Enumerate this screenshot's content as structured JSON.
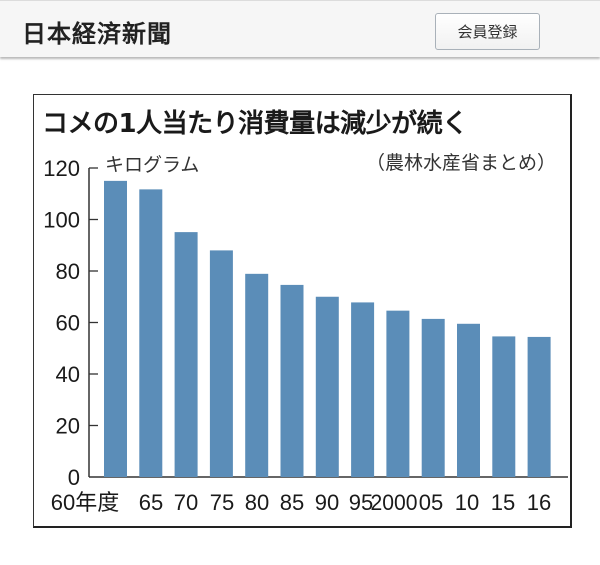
{
  "header": {
    "logo": "日本経済新聞",
    "signup_button": "会員登録"
  },
  "chart_data": {
    "type": "bar",
    "title": "コメの1人当たり消費量は減少が続く",
    "source": "（農林水産省まとめ）",
    "unit": "キログラム",
    "xlabel": "",
    "ylabel": "キログラム",
    "ylim": [
      0,
      120
    ],
    "yticks": [
      "0",
      "20",
      "40",
      "60",
      "80",
      "100",
      "120"
    ],
    "categories": [
      "60年度",
      "65",
      "70",
      "75",
      "80",
      "85",
      "90",
      "95",
      "2000",
      "05",
      "10",
      "15",
      "16"
    ],
    "values": [
      115.0,
      111.7,
      95.1,
      88.0,
      78.9,
      74.6,
      70.0,
      67.8,
      64.6,
      61.4,
      59.5,
      54.6,
      54.4
    ],
    "bar_color": "#5b8db8",
    "grid": false,
    "legend": "none"
  }
}
